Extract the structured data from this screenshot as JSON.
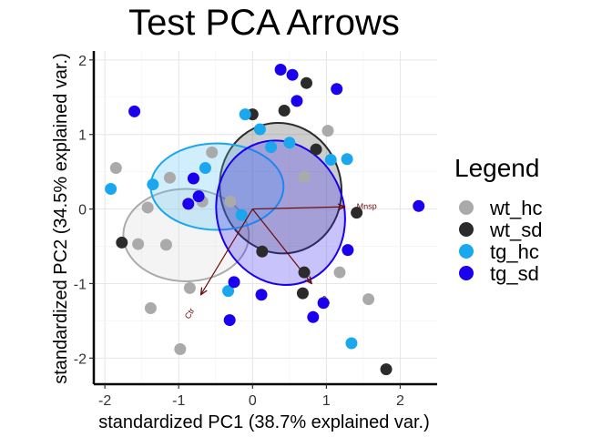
{
  "chart_data": {
    "type": "scatter",
    "title": "Test PCA Arrows",
    "xlabel": "standardized PC1 (38.7% explained var.)",
    "ylabel": "standardized PC2 (34.5% explained var.)",
    "xlim": [
      -2.15,
      2.5
    ],
    "ylim": [
      -2.35,
      2.12
    ],
    "xticks": [
      -2,
      -1,
      0,
      1,
      2
    ],
    "yticks": [
      -2,
      -1,
      0,
      1,
      2
    ],
    "grid": true,
    "legend_title": "Legend",
    "legend_position": "right",
    "series": [
      {
        "name": "wt_hc",
        "color": "#aaaaaa",
        "points": [
          {
            "x": -1.85,
            "y": 0.55
          },
          {
            "x": -1.42,
            "y": 0.02
          },
          {
            "x": -1.12,
            "y": 0.42
          },
          {
            "x": -1.55,
            "y": -0.47
          },
          {
            "x": -1.17,
            "y": -0.48
          },
          {
            "x": -0.55,
            "y": 0.76
          },
          {
            "x": -0.68,
            "y": 0.1
          },
          {
            "x": -0.3,
            "y": 0.1
          },
          {
            "x": 0.7,
            "y": 0.43
          },
          {
            "x": 1.02,
            "y": 1.05
          },
          {
            "x": 1.18,
            "y": -0.85
          },
          {
            "x": 1.57,
            "y": -1.21
          },
          {
            "x": -1.38,
            "y": -1.33
          },
          {
            "x": -0.85,
            "y": -1.06
          },
          {
            "x": -0.98,
            "y": -1.88
          }
        ]
      },
      {
        "name": "wt_sd",
        "color": "#2b2b2b",
        "points": [
          {
            "x": 0.0,
            "y": 1.27
          },
          {
            "x": 0.43,
            "y": 1.32
          },
          {
            "x": 0.73,
            "y": 1.69
          },
          {
            "x": 0.86,
            "y": 0.8
          },
          {
            "x": -1.77,
            "y": -0.45
          },
          {
            "x": 0.13,
            "y": -0.57
          },
          {
            "x": 0.7,
            "y": -0.85
          },
          {
            "x": 0.68,
            "y": -1.13
          },
          {
            "x": 1.41,
            "y": -0.05
          },
          {
            "x": 1.81,
            "y": -2.15
          }
        ]
      },
      {
        "name": "tg_hc",
        "color": "#1aa7ee",
        "points": [
          {
            "x": -1.92,
            "y": 0.27
          },
          {
            "x": -1.35,
            "y": 0.33
          },
          {
            "x": -0.64,
            "y": 0.55
          },
          {
            "x": -0.1,
            "y": 1.27
          },
          {
            "x": 0.1,
            "y": 1.07
          },
          {
            "x": 0.25,
            "y": 0.83
          },
          {
            "x": 0.5,
            "y": 0.89
          },
          {
            "x": 1.06,
            "y": 0.66
          },
          {
            "x": 1.28,
            "y": 0.67
          },
          {
            "x": -0.33,
            "y": -1.1
          },
          {
            "x": -0.15,
            "y": -0.08
          },
          {
            "x": 1.34,
            "y": -1.8
          }
        ]
      },
      {
        "name": "tg_sd",
        "color": "#1a00ee",
        "points": [
          {
            "x": -1.6,
            "y": 1.31
          },
          {
            "x": 0.38,
            "y": 1.87
          },
          {
            "x": 0.54,
            "y": 1.8
          },
          {
            "x": 0.6,
            "y": 1.45
          },
          {
            "x": 1.14,
            "y": 1.61
          },
          {
            "x": -0.8,
            "y": 0.41
          },
          {
            "x": -0.73,
            "y": 0.17
          },
          {
            "x": -0.87,
            "y": 0.07
          },
          {
            "x": 1.29,
            "y": -0.55
          },
          {
            "x": -0.25,
            "y": -0.98
          },
          {
            "x": 0.12,
            "y": -1.15
          },
          {
            "x": 0.96,
            "y": -1.26
          },
          {
            "x": -0.31,
            "y": -1.49
          },
          {
            "x": 0.82,
            "y": -1.45
          },
          {
            "x": 2.25,
            "y": 0.04
          }
        ]
      }
    ],
    "ellipses": [
      {
        "group": "wt_hc",
        "cx": -0.9,
        "cy": -0.35,
        "rx": 0.85,
        "ry": 0.62,
        "angle": 0,
        "fill": "#d9d9d9",
        "stroke": "#aaaaaa"
      },
      {
        "group": "wt_sd",
        "cx": 0.38,
        "cy": 0.28,
        "rx": 0.82,
        "ry": 0.88,
        "angle": 15,
        "fill": "#4d4d4d",
        "stroke": "#2b2b2b"
      },
      {
        "group": "tg_hc",
        "cx": -0.48,
        "cy": 0.3,
        "rx": 0.9,
        "ry": 0.58,
        "angle": 0,
        "fill": "#5bc3f4",
        "stroke": "#1aa7ee"
      },
      {
        "group": "tg_sd",
        "cx": 0.38,
        "cy": -0.05,
        "rx": 0.86,
        "ry": 0.98,
        "angle": 18,
        "fill": "#3a2bf0",
        "stroke": "#1a00ee"
      }
    ],
    "arrows": [
      {
        "label": "Mnsp",
        "x": 1.25,
        "y": 0.03
      },
      {
        "label": "Ctr",
        "x": -0.7,
        "y": -1.15
      },
      {
        "label": "Srt",
        "x": 0.8,
        "y": -1.0
      }
    ],
    "arrow_color": "#6b0a0a"
  }
}
